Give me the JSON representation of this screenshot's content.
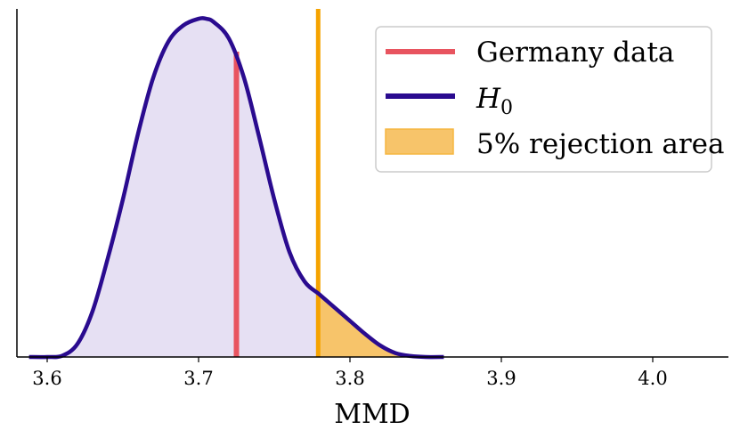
{
  "chart_data": {
    "type": "line",
    "xlabel": "MMD",
    "ylabel": "",
    "xlim": [
      3.58,
      4.05
    ],
    "ylim": [
      0,
      1.06
    ],
    "x_ticks": [
      3.6,
      3.7,
      3.8,
      3.9,
      4.0
    ],
    "x_tick_labels": [
      "3.6",
      "3.7",
      "3.8",
      "3.9",
      "4.0"
    ],
    "y_ticks_visible": false,
    "grid": false,
    "legend_position": "top-right",
    "colors": {
      "h0_line": "#2a0b8f",
      "h0_fill": "#e6e0f3",
      "observed": "#e8545f",
      "threshold": "#f5a300",
      "rejection_fill": "#f7c46a"
    },
    "h0_density": {
      "x": [
        3.588,
        3.6,
        3.61,
        3.62,
        3.63,
        3.64,
        3.65,
        3.66,
        3.67,
        3.68,
        3.69,
        3.7,
        3.705,
        3.71,
        3.72,
        3.73,
        3.74,
        3.75,
        3.76,
        3.77,
        3.78,
        3.79,
        3.8,
        3.81,
        3.82,
        3.83,
        3.84,
        3.85,
        3.862
      ],
      "y": [
        0.0,
        0.0,
        0.004,
        0.04,
        0.14,
        0.3,
        0.48,
        0.68,
        0.85,
        0.96,
        1.01,
        1.03,
        1.03,
        1.02,
        0.97,
        0.85,
        0.67,
        0.48,
        0.32,
        0.23,
        0.19,
        0.15,
        0.11,
        0.07,
        0.035,
        0.012,
        0.003,
        0.0,
        0.0
      ]
    },
    "observed_value": 3.725,
    "observed_line_top": 0.93,
    "rejection_threshold": 3.779,
    "legend": [
      {
        "label": "Germany data",
        "kind": "line"
      },
      {
        "label": "H",
        "subscript": "0",
        "kind": "line"
      },
      {
        "label": "5% rejection area",
        "kind": "patch"
      }
    ]
  }
}
